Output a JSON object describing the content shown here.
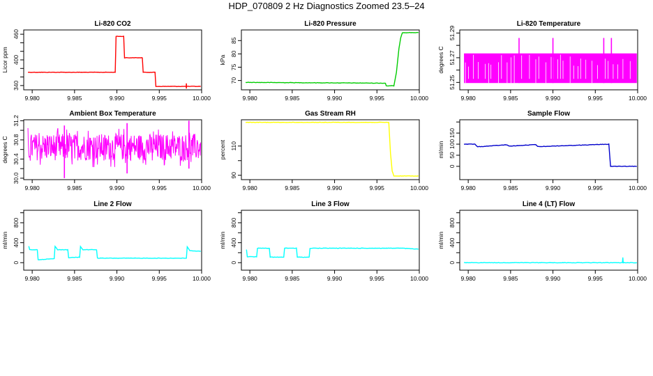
{
  "figure": {
    "title": "HDP_070809  2 Hz Diagnostics Zoomed 23.5–24"
  },
  "chart_data": [
    {
      "type": "line",
      "title": "Li-820 CO2",
      "xlabel": "",
      "ylabel": "Licor ppm",
      "color": "#FF0000",
      "xlim": [
        9.979,
        10.0
      ],
      "xticks": [
        9.98,
        9.985,
        9.99,
        9.995,
        10.0
      ],
      "xtick_labels": [
        "9.980",
        "9.985",
        "9.990",
        "9.995",
        "10.000"
      ],
      "ylim": [
        330,
        470
      ],
      "yticks": [
        340,
        360,
        380,
        400,
        420,
        440,
        460
      ],
      "ytick_labels": [
        "340",
        "",
        "",
        "400",
        "",
        "",
        "460"
      ],
      "series": [
        {
          "name": "CO2",
          "x": [
            9.9795,
            9.9898,
            9.9899,
            9.9908,
            9.9909,
            9.993,
            9.9931,
            9.9945,
            9.9946,
            9.9999
          ],
          "values": [
            371,
            371,
            455,
            455,
            405,
            405,
            371,
            371,
            338,
            338
          ]
        }
      ],
      "spikes": [
        {
          "x": 9.9982,
          "values": [
            333,
            345
          ]
        }
      ]
    },
    {
      "type": "line",
      "title": "Li-820 Pressure",
      "xlabel": "",
      "ylabel": "kPa",
      "color": "#00CC00",
      "xlim": [
        9.979,
        10.0
      ],
      "xticks": [
        9.98,
        9.985,
        9.99,
        9.995,
        10.0
      ],
      "xtick_labels": [
        "9.980",
        "9.985",
        "9.990",
        "9.995",
        "10.000"
      ],
      "ylim": [
        66.5,
        89
      ],
      "yticks": [
        70,
        75,
        80,
        85
      ],
      "ytick_labels": [
        "70",
        "75",
        "80",
        "85"
      ],
      "series": [
        {
          "name": "Pressure",
          "x": [
            9.9795,
            9.996,
            9.9961,
            9.997,
            9.9973,
            9.9976,
            9.9978,
            9.998,
            9.9999
          ],
          "values": [
            69.3,
            69.0,
            68.0,
            68.0,
            73,
            82,
            86,
            88,
            88
          ]
        }
      ],
      "spikes": []
    },
    {
      "type": "line",
      "title": "Li-820 Temperature",
      "xlabel": "",
      "ylabel": "degrees C",
      "color": "#FF00FF",
      "xlim": [
        9.979,
        10.0
      ],
      "xticks": [
        9.98,
        9.985,
        9.99,
        9.995,
        10.0
      ],
      "xtick_labels": [
        "9.980",
        "9.985",
        "9.990",
        "9.995",
        "10.000"
      ],
      "ylim": [
        51.244,
        51.2925
      ],
      "yticks": [
        51.25,
        51.26,
        51.27,
        51.28,
        51.29
      ],
      "ytick_labels": [
        "51.25",
        "",
        "51.27",
        "",
        "51.29"
      ],
      "series": [
        {
          "name": "Temperature",
          "x": [
            9.9795,
            9.9999
          ],
          "values": [
            51.2495,
            51.2735
          ]
        }
      ],
      "spikes": [
        {
          "x": 9.986,
          "values": [
            51.2495,
            51.286
          ]
        },
        {
          "x": 9.99,
          "values": [
            51.2495,
            51.286
          ]
        },
        {
          "x": 9.996,
          "values": [
            51.2495,
            51.286
          ]
        },
        {
          "x": 9.9969,
          "values": [
            51.2495,
            51.286
          ]
        }
      ]
    },
    {
      "type": "line",
      "title": "Ambient Box Temperature",
      "xlabel": "",
      "ylabel": "degrees C",
      "color": "#FF00FF",
      "xlim": [
        9.979,
        10.0
      ],
      "xticks": [
        9.98,
        9.985,
        9.99,
        9.995,
        10.0
      ],
      "xtick_labels": [
        "9.980",
        "9.985",
        "9.990",
        "9.995",
        "10.000"
      ],
      "ylim": [
        29.97,
        31.22
      ],
      "yticks": [
        30.0,
        30.2,
        30.4,
        30.6,
        30.8,
        31.0,
        31.2
      ],
      "ytick_labels": [
        "30.0",
        "",
        "30.4",
        "",
        "30.8",
        "",
        "31.2"
      ],
      "series": [
        {
          "name": "Ambient",
          "x": [
            9.9795,
            9.9999
          ],
          "values": [
            30.35,
            30.95
          ]
        }
      ],
      "spikes": [
        {
          "x": 9.9838,
          "values": [
            30.0,
            31.1
          ]
        },
        {
          "x": 9.9912,
          "values": [
            30.1,
            31.15
          ]
        },
        {
          "x": 9.9985,
          "values": [
            30.2,
            31.2
          ]
        }
      ]
    },
    {
      "type": "line",
      "title": "Gas Stream RH",
      "xlabel": "",
      "ylabel": "percent",
      "color": "#FFFF00",
      "xlim": [
        9.979,
        10.0
      ],
      "xticks": [
        9.98,
        9.985,
        9.99,
        9.995,
        10.0
      ],
      "xtick_labels": [
        "9.980",
        "9.985",
        "9.990",
        "9.995",
        "10.000"
      ],
      "ylim": [
        87,
        128
      ],
      "yticks": [
        90,
        100,
        110
      ],
      "ytick_labels": [
        "90",
        "",
        "110"
      ],
      "series": [
        {
          "name": "RH",
          "x": [
            9.9795,
            9.9964,
            9.9966,
            9.9968,
            9.997,
            9.9999
          ],
          "values": [
            126.2,
            126.2,
            105,
            93,
            89.5,
            89.5
          ]
        }
      ],
      "spikes": []
    },
    {
      "type": "line",
      "title": "Sample Flow",
      "xlabel": "",
      "ylabel": "ml/min",
      "color": "#0000CC",
      "xlim": [
        9.979,
        10.0
      ],
      "xticks": [
        9.98,
        9.985,
        9.99,
        9.995,
        10.0
      ],
      "xtick_labels": [
        "9.980",
        "9.985",
        "9.990",
        "9.995",
        "10.000"
      ],
      "ylim": [
        -60,
        210
      ],
      "yticks": [
        0,
        50,
        100,
        150,
        200
      ],
      "ytick_labels": [
        "0",
        "50",
        "100",
        "150",
        ""
      ],
      "series": [
        {
          "name": "Sample",
          "x": [
            9.9795,
            9.9808,
            9.9811,
            9.9845,
            9.9849,
            9.988,
            9.9882,
            9.9966,
            9.9968,
            9.9999
          ],
          "values": [
            100,
            100,
            88,
            97,
            91,
            98,
            89,
            100,
            0,
            0
          ]
        }
      ],
      "spikes": []
    },
    {
      "type": "line",
      "title": "Line 2 Flow",
      "xlabel": "",
      "ylabel": "ml/min",
      "color": "#00FFFF",
      "xlim": [
        9.979,
        10.0
      ],
      "xticks": [
        9.98,
        9.985,
        9.99,
        9.995,
        10.0
      ],
      "xtick_labels": [
        "9.980",
        "9.985",
        "9.990",
        "9.995",
        "10.000"
      ],
      "ylim": [
        -150,
        1050
      ],
      "yticks": [
        0,
        200,
        400,
        600,
        800,
        1000
      ],
      "ytick_labels": [
        "0",
        "",
        "400",
        "",
        "800",
        ""
      ],
      "series": [
        {
          "name": "Line 2",
          "x": [
            9.9796,
            9.9797,
            9.9806,
            9.9807,
            9.9826,
            9.9827,
            9.983,
            9.9842,
            9.9843,
            9.9856,
            9.9857,
            9.986,
            9.9876,
            9.9877,
            9.9982,
            9.9983,
            9.9986,
            9.9999
          ],
          "values": [
            330,
            260,
            260,
            60,
            80,
            330,
            260,
            260,
            100,
            110,
            320,
            260,
            260,
            90,
            90,
            320,
            240,
            230
          ]
        }
      ],
      "spikes": []
    },
    {
      "type": "line",
      "title": "Line 3 Flow",
      "xlabel": "",
      "ylabel": "ml/min",
      "color": "#00FFFF",
      "xlim": [
        9.979,
        10.0
      ],
      "xticks": [
        9.98,
        9.985,
        9.99,
        9.995,
        10.0
      ],
      "xtick_labels": [
        "9.980",
        "9.985",
        "9.990",
        "9.995",
        "10.000"
      ],
      "ylim": [
        -150,
        1050
      ],
      "yticks": [
        0,
        200,
        400,
        600,
        800,
        1000
      ],
      "ytick_labels": [
        "0",
        "",
        "400",
        "",
        "800",
        ""
      ],
      "series": [
        {
          "name": "Line 3",
          "x": [
            9.9796,
            9.9797,
            9.9808,
            9.9809,
            9.9823,
            9.9824,
            9.984,
            9.9841,
            9.9855,
            9.9856,
            9.987,
            9.9871,
            9.998,
            9.9999
          ],
          "values": [
            260,
            120,
            120,
            290,
            290,
            110,
            110,
            290,
            290,
            110,
            110,
            290,
            290,
            270
          ]
        }
      ],
      "spikes": []
    },
    {
      "type": "line",
      "title": "Line 4 (LT) Flow",
      "xlabel": "",
      "ylabel": "ml/min",
      "color": "#00FFFF",
      "xlim": [
        9.979,
        10.0
      ],
      "xticks": [
        9.98,
        9.985,
        9.99,
        9.995,
        10.0
      ],
      "xtick_labels": [
        "9.980",
        "9.985",
        "9.990",
        "9.995",
        "10.000"
      ],
      "ylim": [
        -150,
        1050
      ],
      "yticks": [
        0,
        200,
        400,
        600,
        800,
        1000
      ],
      "ytick_labels": [
        "0",
        "",
        "400",
        "",
        "800",
        ""
      ],
      "series": [
        {
          "name": "Line 4",
          "x": [
            9.9795,
            9.9982,
            9.99825,
            9.9983,
            9.9999
          ],
          "values": [
            0,
            0,
            100,
            0,
            0
          ]
        }
      ],
      "spikes": []
    }
  ]
}
